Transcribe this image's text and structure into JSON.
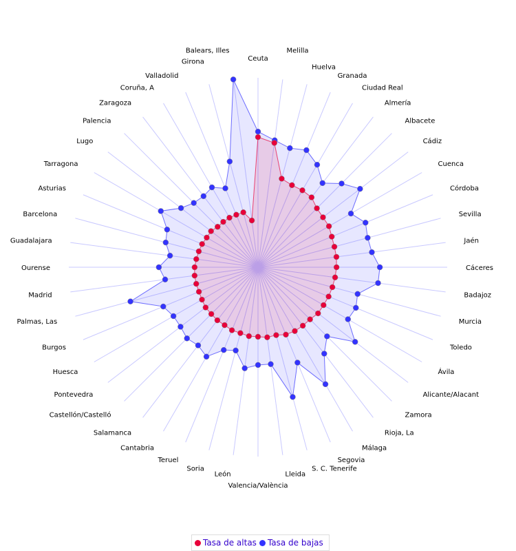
{
  "chart_data": {
    "type": "radar",
    "title": "",
    "rmax": 100,
    "grid": true,
    "legend_position": "bottom-center",
    "categories": [
      "Ceuta",
      "Melilla",
      "Huelva",
      "Granada",
      "Ciudad Real",
      "Almería",
      "Albacete",
      "Cádiz",
      "Cuenca",
      "Córdoba",
      "Sevilla",
      "Jaén",
      "Cáceres",
      "Badajoz",
      "Murcia",
      "Toledo",
      "Ávila",
      "Alicante/Alacant",
      "Zamora",
      "Rioja, La",
      "Málaga",
      "Segovia",
      "S. C. Tenerife",
      "Lleida",
      "Valencia/València",
      "León",
      "Soria",
      "Teruel",
      "Cantabria",
      "Salamanca",
      "Castellón/Castelló",
      "Pontevedra",
      "Huesca",
      "Burgos",
      "Palmas, Las",
      "Madrid",
      "Ourense",
      "Guadalajara",
      "Barcelona",
      "Asturias",
      "Tarragona",
      "Lugo",
      "Palencia",
      "Zaragoza",
      "Coruña, A",
      "Valladolid",
      "Girona",
      "Balears, Illes"
    ],
    "series": [
      {
        "name": "Tasa de bajas",
        "color": "#3333ff",
        "values": [
          71.6,
          67.6,
          65.1,
          66.9,
          62.5,
          56,
          62.5,
          68,
          56.7,
          61.5,
          60,
          60.7,
          64.4,
          64,
          54.5,
          56,
          54.9,
          64.7,
          51.6,
          57.5,
          71.3,
          54.5,
          70.9,
          51.6,
          51.6,
          53.8,
          45.5,
          47.3,
          54.5,
          52,
          53.1,
          51.6,
          51.6,
          54.2,
          69.8,
          49.5,
          52.4,
          46.9,
          50.5,
          52,
          59.3,
          51.3,
          48,
          47.3,
          48.7,
          45.1,
          57.8,
          100
        ]
      },
      {
        "name": "Tasa de altas",
        "color": "#e8003a",
        "values": [
          68.7,
          66.2,
          48.4,
          46.9,
          46.9,
          46.5,
          44,
          43.3,
          43.3,
          42.2,
          41.8,
          41.8,
          41.5,
          41.1,
          40.7,
          40.4,
          40,
          40,
          38.9,
          38.9,
          38.9,
          38.5,
          37.1,
          37.3,
          36.7,
          36.7,
          36,
          36,
          35.3,
          35.3,
          34.9,
          34.9,
          34.2,
          33.8,
          33.8,
          33.8,
          33.5,
          32.9,
          32.4,
          32,
          31.3,
          31.3,
          30.2,
          30.2,
          30.2,
          30,
          30,
          24.9
        ]
      }
    ]
  },
  "legend": {
    "items": [
      {
        "label": "Tasa de altas",
        "color": "#e8003a"
      },
      {
        "label": "Tasa de bajas",
        "color": "#3333ff"
      }
    ]
  }
}
